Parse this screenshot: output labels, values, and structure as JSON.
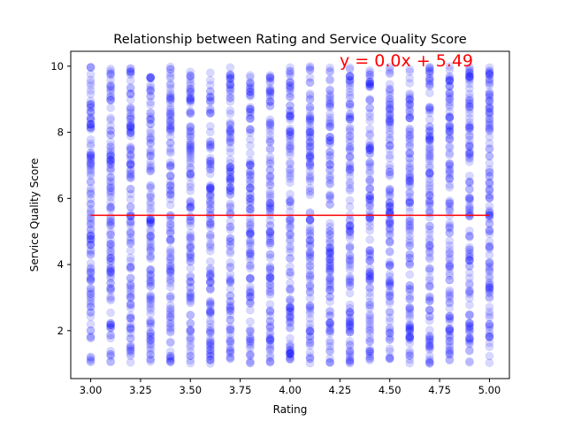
{
  "chart_data": {
    "type": "scatter",
    "title": "Relationship between Rating and Service Quality Score",
    "xlabel": "Rating",
    "ylabel": "Service Quality Score",
    "xlim": [
      2.9,
      5.1
    ],
    "ylim": [
      0.55,
      10.45
    ],
    "x_ticks": [
      3.0,
      3.25,
      3.5,
      3.75,
      4.0,
      4.25,
      4.5,
      4.75,
      5.0
    ],
    "x_tick_labels": [
      "3.00",
      "3.25",
      "3.50",
      "3.75",
      "4.00",
      "4.25",
      "4.50",
      "4.75",
      "5.00"
    ],
    "y_ticks": [
      2,
      4,
      6,
      8,
      10
    ],
    "y_tick_labels": [
      "2",
      "4",
      "6",
      "8",
      "10"
    ],
    "grid": false,
    "legend": "none",
    "series": [
      {
        "color": "#0000ff",
        "marker": "circle",
        "alpha": 0.15,
        "x_values": [
          3.0,
          3.1,
          3.2,
          3.3,
          3.4,
          3.5,
          3.6,
          3.7,
          3.8,
          3.9,
          4.0,
          4.1,
          4.2,
          4.3,
          4.4,
          4.5,
          4.6,
          4.7,
          4.8,
          4.9,
          5.0
        ],
        "y_range": [
          1.0,
          10.0
        ]
      }
    ],
    "trendline": {
      "color": "#ff0000",
      "slope": 0.0,
      "intercept": 5.49,
      "x_range": [
        3.0,
        5.0
      ],
      "label": "y = 0.0x + 5.49",
      "label_color": "#ff0000"
    }
  }
}
